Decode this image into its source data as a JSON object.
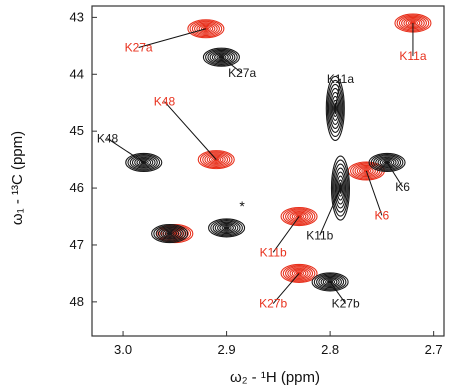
{
  "chart_data": {
    "type": "contour",
    "xlabel": "ω₂ - ¹H  (ppm)",
    "ylabel": "ω₁ - ¹³C  (ppm)",
    "xlim": [
      3.03,
      2.69
    ],
    "ylim": [
      48.6,
      42.8
    ],
    "x_ticks": [
      "3.0",
      "2.9",
      "2.8",
      "2.7"
    ],
    "y_ticks": [
      "43",
      "44",
      "45",
      "46",
      "47",
      "48"
    ],
    "colors": {
      "black_series": "#1a1a1a",
      "red_series": "#e8321e"
    },
    "peaks_black": [
      {
        "label": "K27a",
        "x": 2.905,
        "y": 43.7
      },
      {
        "label": "K11a",
        "x": 2.795,
        "y": 44.6
      },
      {
        "label": "K48",
        "x": 2.98,
        "y": 45.55
      },
      {
        "label": "K11b",
        "x": 2.79,
        "y": 46.0
      },
      {
        "label": "K6",
        "x": 2.745,
        "y": 45.55
      },
      {
        "label": "K27b",
        "x": 2.8,
        "y": 47.65
      },
      {
        "label": "",
        "x": 2.955,
        "y": 46.8
      },
      {
        "label": "",
        "x": 2.9,
        "y": 46.7
      }
    ],
    "peaks_red": [
      {
        "label": "K27a",
        "x": 2.92,
        "y": 43.2
      },
      {
        "label": "K11a",
        "x": 2.72,
        "y": 43.1
      },
      {
        "label": "K48",
        "x": 2.91,
        "y": 45.5
      },
      {
        "label": "K6",
        "x": 2.765,
        "y": 45.7
      },
      {
        "label": "K11b",
        "x": 2.83,
        "y": 46.5
      },
      {
        "label": "K27b",
        "x": 2.83,
        "y": 47.5
      },
      {
        "label": "",
        "x": 2.95,
        "y": 46.8
      }
    ],
    "labels_black": [
      {
        "text": "K27a",
        "x": 2.885,
        "y": 44.05
      },
      {
        "text": "K11a",
        "x": 2.79,
        "y": 44.15
      },
      {
        "text": "K48",
        "x": 3.015,
        "y": 45.2
      },
      {
        "text": "K11b",
        "x": 2.81,
        "y": 46.9
      },
      {
        "text": "K6",
        "x": 2.73,
        "y": 46.05
      },
      {
        "text": "K27b",
        "x": 2.785,
        "y": 48.1
      }
    ],
    "labels_red": [
      {
        "text": "K27a",
        "x": 2.985,
        "y": 43.6
      },
      {
        "text": "K11a",
        "x": 2.72,
        "y": 43.75
      },
      {
        "text": "K48",
        "x": 2.96,
        "y": 44.55
      },
      {
        "text": "K6",
        "x": 2.75,
        "y": 46.55
      },
      {
        "text": "K11b",
        "x": 2.855,
        "y": 47.2
      },
      {
        "text": "K27b",
        "x": 2.855,
        "y": 48.1
      }
    ],
    "asterisk": {
      "text": "*",
      "x": 2.885,
      "y": 46.4
    }
  }
}
